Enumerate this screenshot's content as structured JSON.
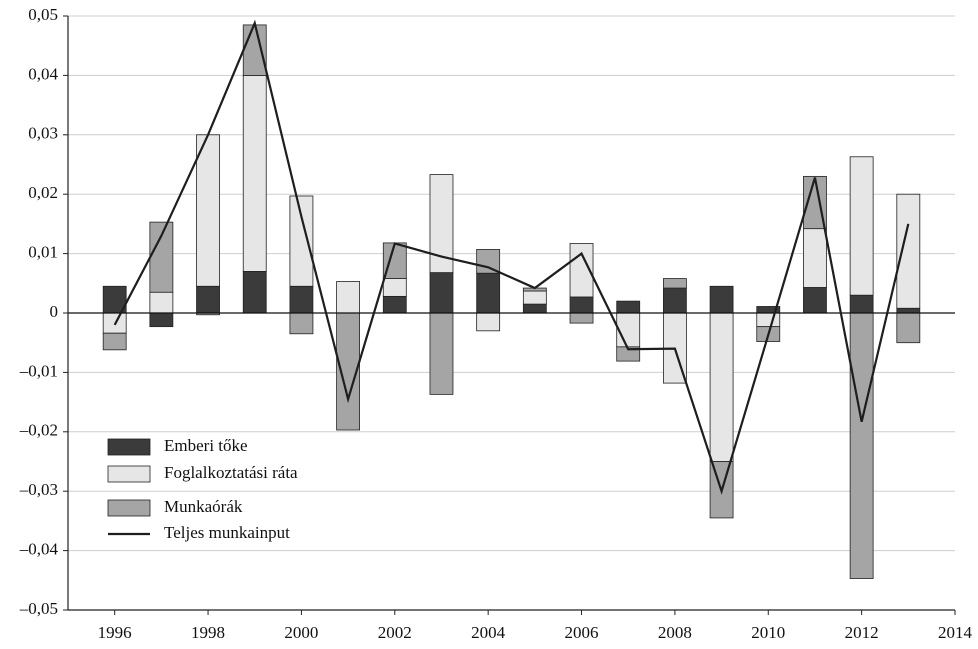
{
  "chart_data": {
    "type": "bar",
    "stacked": true,
    "x": [
      1996,
      1997,
      1998,
      1999,
      2000,
      2001,
      2002,
      2003,
      2004,
      2005,
      2006,
      2007,
      2008,
      2009,
      2010,
      2011,
      2012,
      2013
    ],
    "series": [
      {
        "name": "Emberi tőke",
        "type": "bar",
        "color": "#3b3b3b",
        "values": [
          0.0045,
          -0.0023,
          0.0045,
          0.007,
          0.0045,
          0.0,
          0.0028,
          0.0068,
          0.0067,
          0.0015,
          0.0027,
          0.002,
          0.0042,
          0.0045,
          0.0011,
          0.0043,
          0.003,
          0.0008
        ]
      },
      {
        "name": "Foglalkoztatási ráta",
        "type": "bar",
        "color": "#e6e6e6",
        "values": [
          -0.0034,
          0.0035,
          0.0255,
          0.033,
          0.0152,
          0.0053,
          0.003,
          0.0165,
          -0.003,
          0.0022,
          0.009,
          -0.0057,
          -0.0118,
          -0.025,
          -0.0023,
          0.0099,
          0.0233,
          0.0192
        ]
      },
      {
        "name": "Munkaórák",
        "type": "bar",
        "color": "#a5a5a5",
        "values": [
          -0.0028,
          0.0118,
          -0.0003,
          0.0085,
          -0.0035,
          -0.0197,
          0.006,
          -0.0137,
          0.004,
          0.0005,
          -0.0017,
          -0.0024,
          0.0016,
          -0.0095,
          -0.0025,
          0.0088,
          -0.0447,
          -0.005
        ]
      },
      {
        "name": "Teljes munkainput",
        "type": "line",
        "color": "#1e1e1e",
        "values": [
          -0.002,
          0.013,
          0.03,
          0.0488,
          0.0162,
          -0.0145,
          0.0117,
          0.0095,
          0.0077,
          0.0042,
          0.01,
          -0.0061,
          -0.006,
          -0.03,
          -0.0037,
          0.0228,
          -0.0183,
          0.015
        ]
      }
    ],
    "xlim": [
      1995,
      2014
    ],
    "xticks": [
      1996,
      1998,
      2000,
      2002,
      2004,
      2006,
      2008,
      2010,
      2012,
      2014
    ],
    "ylim": [
      -0.05,
      0.05
    ],
    "yticks": [
      {
        "value": 0.05,
        "label": "0,05"
      },
      {
        "value": 0.04,
        "label": "0,04"
      },
      {
        "value": 0.03,
        "label": "0,03"
      },
      {
        "value": 0.02,
        "label": "0,02"
      },
      {
        "value": 0.01,
        "label": "0,01"
      },
      0,
      {
        "value": -0.01,
        "label": "–0,01"
      },
      {
        "value": -0.02,
        "label": "–0,02"
      },
      {
        "value": -0.03,
        "label": "–0,03"
      },
      {
        "value": -0.04,
        "label": "–0,04"
      },
      {
        "value": -0.05,
        "label": "–0,05"
      }
    ],
    "grid": true,
    "legend": "lower left"
  }
}
